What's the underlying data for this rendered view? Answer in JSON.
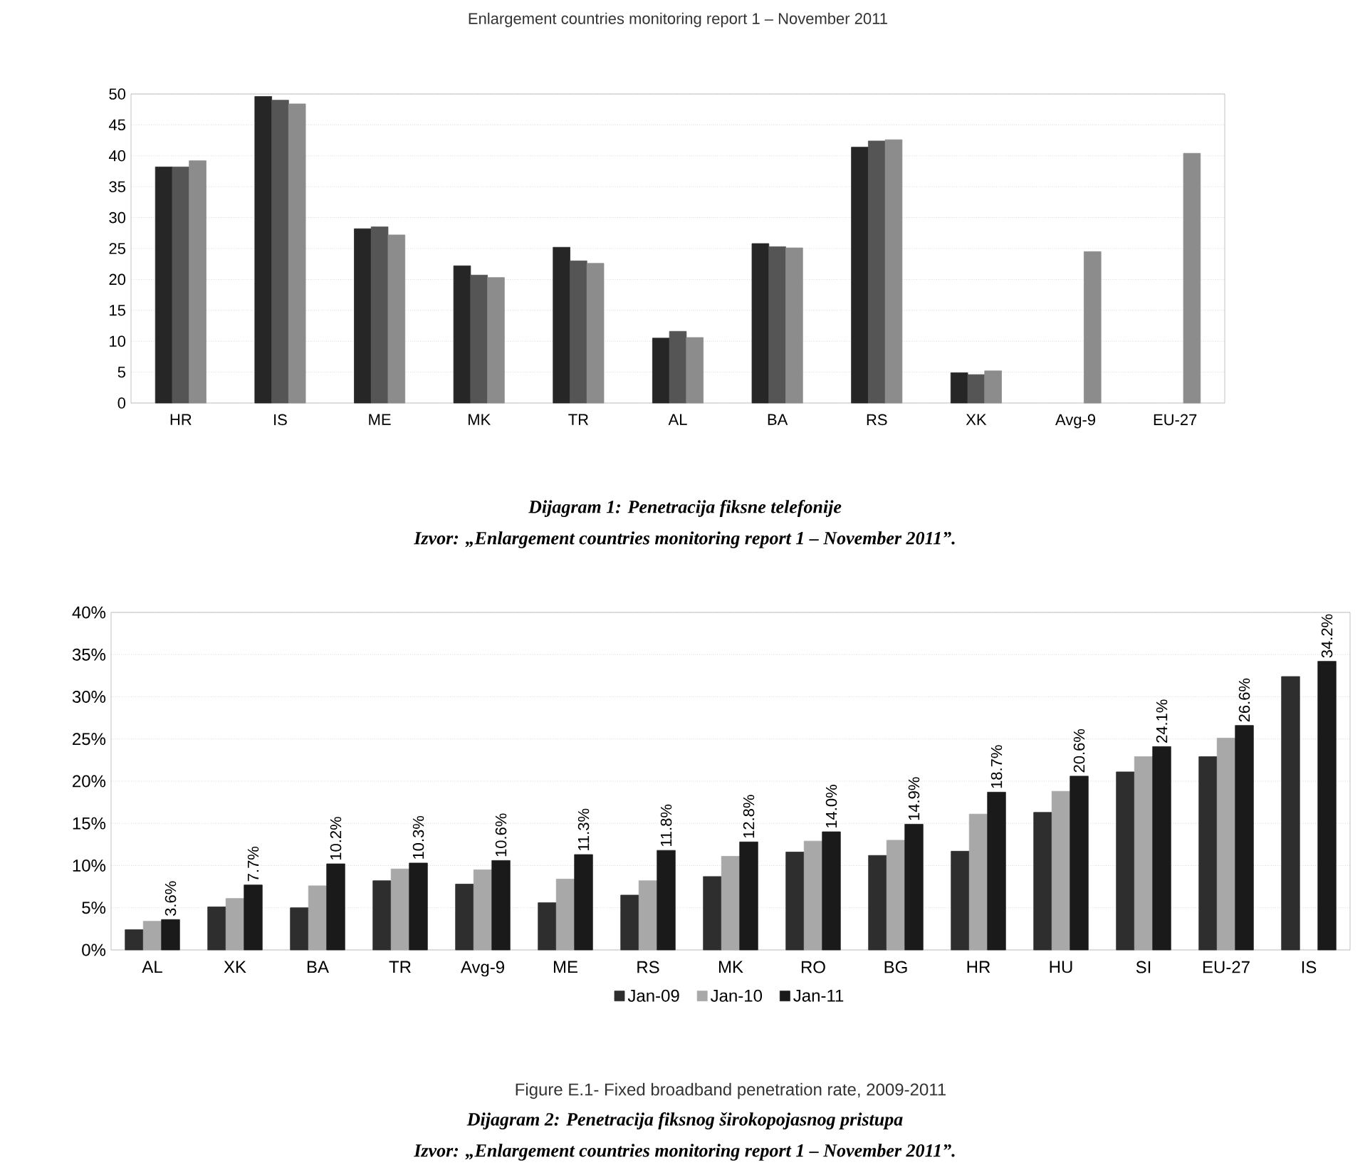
{
  "chart_data": [
    {
      "type": "bar",
      "title": "Enlargement countries monitoring report 1 – November 2011",
      "categories": [
        "HR",
        "IS",
        "ME",
        "MK",
        "TR",
        "AL",
        "BA",
        "RS",
        "XK",
        "Avg-9",
        "EU-27"
      ],
      "series": [
        {
          "color": "#262626",
          "values": [
            38.2,
            49.6,
            28.2,
            22.2,
            25.2,
            10.5,
            25.8,
            41.4,
            4.9,
            null,
            null
          ]
        },
        {
          "color": "#555555",
          "values": [
            38.2,
            49.0,
            28.5,
            20.7,
            23.0,
            11.6,
            25.3,
            42.4,
            4.6,
            null,
            null
          ]
        },
        {
          "color": "#8c8c8c",
          "values": [
            39.2,
            48.4,
            27.2,
            20.3,
            22.6,
            10.6,
            25.1,
            42.6,
            5.2,
            24.5,
            40.4
          ]
        }
      ],
      "ylim": [
        0,
        50
      ],
      "yticks": [
        0,
        5,
        10,
        15,
        20,
        25,
        30,
        35,
        40,
        45,
        50
      ],
      "grid": "y",
      "annotations": [
        "Dijagram 1: Penetracija fiksne telefonije",
        "Izvor: „Enlargement countries monitoring report 1 – November 2011”."
      ]
    },
    {
      "type": "bar",
      "title": "Figure E.1- Fixed broadband penetration rate, 2009-2011",
      "categories": [
        "AL",
        "XK",
        "BA",
        "TR",
        "Avg-9",
        "ME",
        "RS",
        "MK",
        "RO",
        "BG",
        "HR",
        "HU",
        "SI",
        "EU-27",
        "IS"
      ],
      "series": [
        {
          "name": "Jan-09",
          "color": "#2e2e2e",
          "values": [
            2.4,
            5.1,
            5.0,
            8.2,
            7.8,
            5.6,
            6.5,
            8.7,
            11.6,
            11.2,
            11.7,
            16.3,
            21.1,
            22.9,
            32.4
          ]
        },
        {
          "name": "Jan-10",
          "color": "#a8a8a8",
          "values": [
            3.4,
            6.1,
            7.6,
            9.6,
            9.5,
            8.4,
            8.2,
            11.1,
            12.9,
            13.0,
            16.1,
            18.8,
            22.9,
            25.1,
            null
          ]
        },
        {
          "name": "Jan-11",
          "color": "#1a1a1a",
          "values": [
            3.6,
            7.7,
            10.2,
            10.3,
            10.6,
            11.3,
            11.8,
            12.8,
            14.0,
            14.9,
            18.7,
            20.6,
            24.1,
            26.6,
            34.2
          ],
          "value_labels": [
            "3.6%",
            "7.7%",
            "10.2%",
            "10.3%",
            "10.6%",
            "11.3%",
            "11.8%",
            "12.8%",
            "14.0%",
            "14.9%",
            "18.7%",
            "20.6%",
            "24.1%",
            "26.6%",
            "34.2%"
          ]
        }
      ],
      "ylim": [
        0,
        40
      ],
      "yticks": [
        {
          "value": 0,
          "label": "0%"
        },
        {
          "value": 5,
          "label": "5%"
        },
        {
          "value": 10,
          "label": "10%"
        },
        {
          "value": 15,
          "label": "15%"
        },
        {
          "value": 20,
          "label": "20%"
        },
        {
          "value": 25,
          "label": "25%"
        },
        {
          "value": 30,
          "label": "30%"
        },
        {
          "value": 35,
          "label": "35%"
        },
        {
          "value": 40,
          "label": "40%"
        }
      ],
      "grid": "y",
      "legend": "bottom",
      "annotations": [
        "Dijagram 2: Penetracija fiksnog širokopojasnog pristupa",
        "Izvor: „Enlargement countries monitoring report 1 – November 2011”."
      ]
    }
  ]
}
